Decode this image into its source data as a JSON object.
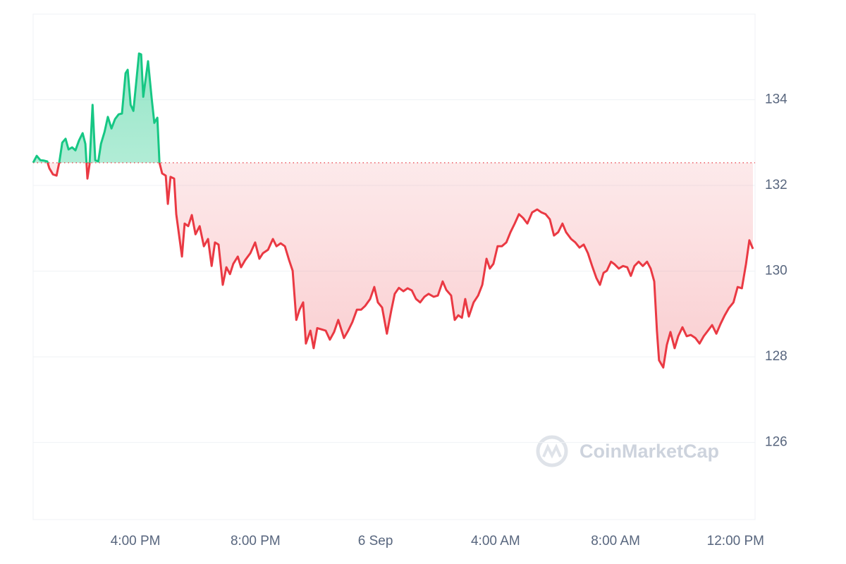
{
  "chart_data": {
    "type": "line",
    "x": [
      12.59,
      12.71,
      12.83,
      12.95,
      13.06,
      13.13,
      13.25,
      13.37,
      13.46,
      13.56,
      13.67,
      13.77,
      13.89,
      14.0,
      14.12,
      14.24,
      14.33,
      14.4,
      14.47,
      14.57,
      14.66,
      14.76,
      14.85,
      14.97,
      15.08,
      15.2,
      15.32,
      15.44,
      15.55,
      15.67,
      15.74,
      15.84,
      15.93,
      16.02,
      16.12,
      16.19,
      16.26,
      16.42,
      16.54,
      16.63,
      16.73,
      16.8,
      16.89,
      17.01,
      17.08,
      17.17,
      17.29,
      17.36,
      17.55,
      17.64,
      17.76,
      17.88,
      18.0,
      18.14,
      18.28,
      18.42,
      18.54,
      18.65,
      18.77,
      18.91,
      19.03,
      19.15,
      19.26,
      19.41,
      19.52,
      19.66,
      19.83,
      19.99,
      20.13,
      20.25,
      20.42,
      20.58,
      20.7,
      20.84,
      20.98,
      21.12,
      21.24,
      21.36,
      21.47,
      21.59,
      21.68,
      21.83,
      21.94,
      22.06,
      22.2,
      22.34,
      22.48,
      22.62,
      22.76,
      22.95,
      23.09,
      23.23,
      23.38,
      23.52,
      23.66,
      23.82,
      23.96,
      24.08,
      24.22,
      24.38,
      24.53,
      24.64,
      24.78,
      24.93,
      25.07,
      25.21,
      25.35,
      25.49,
      25.63,
      25.77,
      25.94,
      26.08,
      26.24,
      26.36,
      26.52,
      26.64,
      26.76,
      26.88,
      26.99,
      27.11,
      27.27,
      27.42,
      27.56,
      27.7,
      27.81,
      27.93,
      28.07,
      28.21,
      28.36,
      28.5,
      28.64,
      28.78,
      28.92,
      29.06,
      29.22,
      29.39,
      29.53,
      29.67,
      29.81,
      29.95,
      30.09,
      30.23,
      30.35,
      30.52,
      30.66,
      30.8,
      30.94,
      31.08,
      31.22,
      31.36,
      31.48,
      31.6,
      31.71,
      31.85,
      31.97,
      32.11,
      32.25,
      32.39,
      32.51,
      32.63,
      32.77,
      32.91,
      33.05,
      33.17,
      33.29,
      33.38,
      33.45,
      33.59,
      33.71,
      33.83,
      33.97,
      34.09,
      34.23,
      34.37,
      34.51,
      34.66,
      34.8,
      34.94,
      35.08,
      35.22,
      35.36,
      35.5,
      35.64,
      35.78,
      35.93,
      36.07,
      36.21,
      36.35,
      36.46,
      36.58
    ],
    "values": [
      132.53,
      132.69,
      132.59,
      132.58,
      132.56,
      132.4,
      132.26,
      132.23,
      132.53,
      133.0,
      133.09,
      132.84,
      132.89,
      132.82,
      133.05,
      133.22,
      132.97,
      132.16,
      132.49,
      133.88,
      132.59,
      132.56,
      132.97,
      133.25,
      133.6,
      133.33,
      133.55,
      133.66,
      133.68,
      134.62,
      134.7,
      133.88,
      133.74,
      134.37,
      135.08,
      135.06,
      134.07,
      134.9,
      134.04,
      133.46,
      133.58,
      132.53,
      132.28,
      132.23,
      131.57,
      132.2,
      132.16,
      131.33,
      130.34,
      131.11,
      131.05,
      131.31,
      130.86,
      131.05,
      130.58,
      130.75,
      130.12,
      130.67,
      130.62,
      129.68,
      130.09,
      129.93,
      130.17,
      130.34,
      130.09,
      130.26,
      130.42,
      130.67,
      130.29,
      130.42,
      130.5,
      130.75,
      130.58,
      130.65,
      130.58,
      130.26,
      130.01,
      128.86,
      129.1,
      129.27,
      128.31,
      128.61,
      128.2,
      128.67,
      128.64,
      128.61,
      128.4,
      128.58,
      128.86,
      128.44,
      128.61,
      128.81,
      129.1,
      129.1,
      129.19,
      129.35,
      129.63,
      129.27,
      129.15,
      128.54,
      129.1,
      129.47,
      129.61,
      129.53,
      129.6,
      129.55,
      129.35,
      129.27,
      129.4,
      129.47,
      129.4,
      129.43,
      129.76,
      129.56,
      129.43,
      128.86,
      128.97,
      128.91,
      129.35,
      128.94,
      129.27,
      129.43,
      129.68,
      130.29,
      130.06,
      130.17,
      130.58,
      130.58,
      130.67,
      130.91,
      131.11,
      131.33,
      131.24,
      131.11,
      131.37,
      131.44,
      131.37,
      131.33,
      131.21,
      130.83,
      130.91,
      131.11,
      130.91,
      130.75,
      130.67,
      130.55,
      130.62,
      130.42,
      130.12,
      129.84,
      129.68,
      129.96,
      130.01,
      130.22,
      130.16,
      130.06,
      130.12,
      130.09,
      129.89,
      130.12,
      130.22,
      130.12,
      130.22,
      130.06,
      129.76,
      128.61,
      127.92,
      127.75,
      128.28,
      128.58,
      128.2,
      128.48,
      128.69,
      128.48,
      128.51,
      128.44,
      128.31,
      128.48,
      128.61,
      128.74,
      128.54,
      128.77,
      128.97,
      129.14,
      129.27,
      129.63,
      129.6,
      130.17,
      130.72,
      130.52
    ],
    "baseline": 132.53,
    "up_color": "#16c784",
    "down_color": "#ea3943",
    "xlim": [
      12.59,
      36.65
    ],
    "xticks": [
      {
        "value": 16,
        "label": "4:00 PM"
      },
      {
        "value": 20,
        "label": "8:00 PM"
      },
      {
        "value": 24,
        "label": "6 Sep"
      },
      {
        "value": 28,
        "label": "4:00 AM"
      },
      {
        "value": 32,
        "label": "8:00 AM"
      },
      {
        "value": 36,
        "label": "12:00 PM"
      }
    ],
    "ylim": [
      124.2,
      136.0
    ],
    "yticks": [
      126,
      128,
      130,
      132,
      134
    ],
    "grid": true,
    "watermark": "CoinMarketCap"
  }
}
